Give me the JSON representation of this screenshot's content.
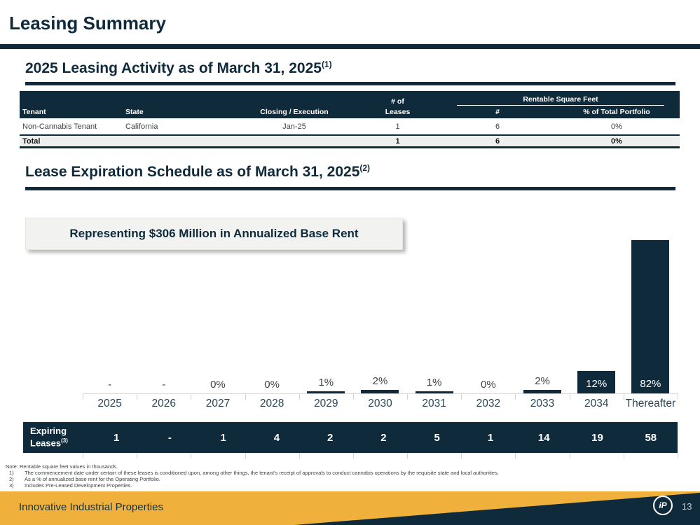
{
  "slide": {
    "title": "Leasing Summary",
    "footer_brand": "Innovative Industrial Properties",
    "page_number": "13",
    "logo_text": "iP"
  },
  "colors": {
    "navy": "#0e2a3b",
    "gold": "#efb13c",
    "total_row_bg": "#eef0ef",
    "callout_bg": "#f2f2f0",
    "axis_gray": "#d9d9d9"
  },
  "section1": {
    "heading": "2025 Leasing Activity as of March 31, 2025",
    "heading_superscript": "(1)",
    "table": {
      "group_headers": {
        "leases_line1": "# of",
        "rentable_sf": "Rentable Square Feet"
      },
      "columns": [
        "Tenant",
        "State",
        "Closing / Execution",
        "Leases",
        "#",
        "% of Total Portfolio"
      ],
      "rows": [
        [
          "Non-Cannabis Tenant",
          "California",
          "Jan-25",
          "1",
          "6",
          "0%"
        ]
      ],
      "total_row": [
        "Total",
        "",
        "",
        "1",
        "6",
        "0%"
      ]
    }
  },
  "section2": {
    "heading": "Lease Expiration Schedule as of March 31, 2025",
    "heading_superscript": "(2)",
    "callout": "Representing $306 Million in Annualized Base Rent"
  },
  "chart_data": {
    "type": "bar",
    "title": "Lease Expiration Schedule as of March 31, 2025",
    "annotation": "Representing $306 Million in Annualized Base Rent",
    "categories": [
      "2025",
      "2026",
      "2027",
      "2028",
      "2029",
      "2030",
      "2031",
      "2032",
      "2033",
      "2034",
      "Thereafter"
    ],
    "values": [
      null,
      null,
      0,
      0,
      1,
      2,
      1,
      0,
      2,
      12,
      82
    ],
    "value_labels": [
      "-",
      "-",
      "0%",
      "0%",
      "1%",
      "2%",
      "1%",
      "0%",
      "2%",
      "12%",
      "82%"
    ],
    "unit": "% of annualized base rent",
    "ylim": [
      0,
      90
    ],
    "grid": false,
    "legend": "none",
    "bar_color": "#0e2a3b",
    "expiring_leases_row": {
      "label_line1": "Expiring",
      "label_line2": "Leases",
      "label_superscript": "(3)",
      "values": [
        "1",
        "-",
        "1",
        "4",
        "2",
        "2",
        "5",
        "1",
        "14",
        "19",
        "58"
      ]
    }
  },
  "footnotes": {
    "note": "Note: Rentable square feet values in thousands.",
    "items": [
      {
        "num": "1)",
        "text": "The commencement date under certain of these leases is conditioned upon, among other things, the tenant's receipt of approvals to conduct cannabis operations by the requisite state and local authorities."
      },
      {
        "num": "2)",
        "text": "As a % of annualized base rent for the Operating Portfolio."
      },
      {
        "num": "3)",
        "text": "Includes Pre-Leased Development Properties."
      }
    ]
  }
}
